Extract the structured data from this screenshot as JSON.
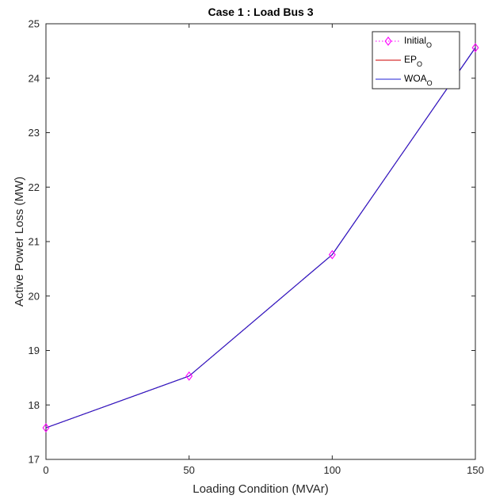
{
  "chart_data": {
    "type": "line",
    "title": "Case 1 :  Load Bus 3",
    "xlabel": "Loading Condition (MVAr)",
    "ylabel": "Active Power Loss (MW)",
    "x": [
      0,
      50,
      100,
      150
    ],
    "xlim": [
      0,
      150
    ],
    "ylim": [
      17,
      25
    ],
    "xticks": [
      0,
      50,
      100,
      150
    ],
    "yticks": [
      17,
      18,
      19,
      20,
      21,
      22,
      23,
      24,
      25
    ],
    "grid": false,
    "legend_position": "top-right",
    "series": [
      {
        "name": "Initial",
        "name_subscript": "O",
        "values": [
          17.58,
          18.53,
          20.76,
          24.56
        ],
        "color": "#ff00ff",
        "line": "dotted",
        "marker": "diamond"
      },
      {
        "name": "EP",
        "name_subscript": "O",
        "values": [
          17.58,
          18.53,
          20.76,
          24.56
        ],
        "color": "#cc0000",
        "line": "solid",
        "marker": "none"
      },
      {
        "name": "WOA",
        "name_subscript": "O",
        "values": [
          17.58,
          18.53,
          20.76,
          24.56
        ],
        "color": "#1f1fd6",
        "line": "solid",
        "marker": "none"
      }
    ]
  }
}
